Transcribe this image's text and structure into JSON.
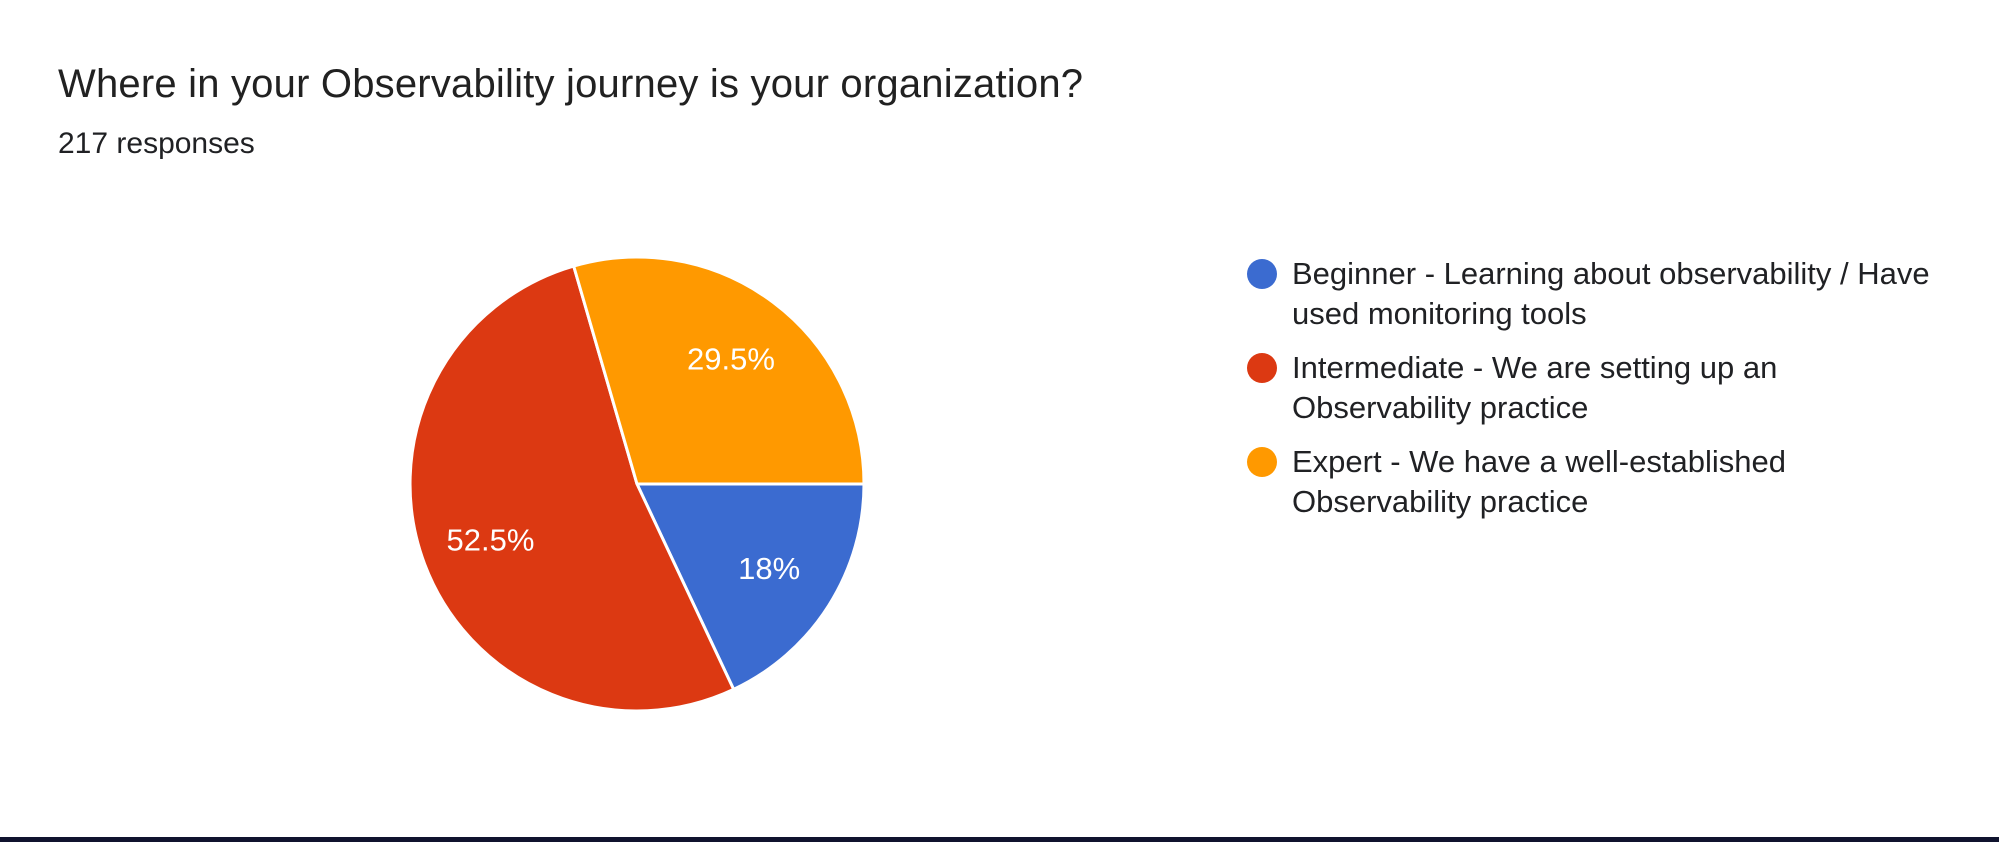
{
  "header": {
    "title": "Where in your Observability journey is your organization?",
    "responses": "217 responses"
  },
  "chart_data": {
    "type": "pie",
    "title": "Where in your Observability journey is your organization?",
    "subtitle": "217 responses",
    "total_responses": 217,
    "categories": [
      "Beginner - Learning about observability / Have used monitoring tools",
      "Intermediate - We are setting up an Observability practice",
      "Expert - We have a well-established Observability practice"
    ],
    "values": [
      18,
      52.5,
      29.5
    ],
    "value_labels": [
      "18%",
      "52.5%",
      "29.5%"
    ],
    "colors": [
      "#3B6BD0",
      "#DC3912",
      "#FF9900"
    ],
    "legend_position": "right",
    "start_angle_deg": 90,
    "direction": "clockwise",
    "slice_border_color": "#ffffff",
    "label_color": "#ffffff"
  },
  "footer": {
    "divider_color": "#10132e"
  }
}
